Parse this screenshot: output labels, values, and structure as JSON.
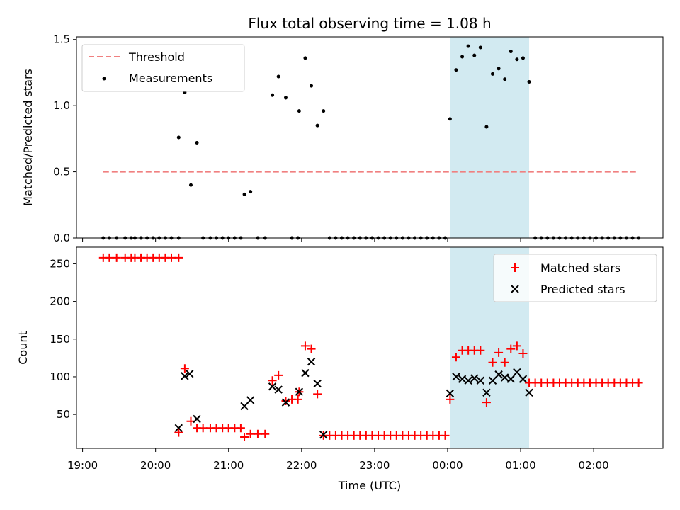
{
  "chart_data": [
    {
      "type": "scatter",
      "title": "Flux total observing time = 1.08 h",
      "xlabel": "",
      "ylabel": "Matched/Predicted stars",
      "ylim": [
        0,
        1.52
      ],
      "yticks": [
        "0.0",
        "0.5",
        "1.0",
        "1.5"
      ],
      "ytick_values": [
        0,
        0.5,
        1.0,
        1.5
      ],
      "grid": false,
      "legend_position": "top-left",
      "highlight_span": {
        "x0": "00:02",
        "x1": "01:07",
        "color": "#add8e6"
      },
      "threshold": {
        "name": "Threshold",
        "value": 0.5,
        "x0": "19:17",
        "x1": "02:37",
        "color": "#f08080"
      },
      "series": [
        {
          "name": "Measurements",
          "color": "#000000",
          "points": [
            [
              "19:17",
              0
            ],
            [
              "19:22",
              0
            ],
            [
              "19:28",
              0
            ],
            [
              "19:35",
              0
            ],
            [
              "19:40",
              0
            ],
            [
              "19:43",
              0
            ],
            [
              "19:48",
              0
            ],
            [
              "19:53",
              0
            ],
            [
              "19:58",
              0
            ],
            [
              "20:03",
              0
            ],
            [
              "20:08",
              0
            ],
            [
              "20:13",
              0
            ],
            [
              "20:19",
              0
            ],
            [
              "20:19",
              0.76
            ],
            [
              "20:24",
              1.1
            ],
            [
              "20:29",
              0.4
            ],
            [
              "20:34",
              0.72
            ],
            [
              "20:39",
              0
            ],
            [
              "20:45",
              0
            ],
            [
              "20:50",
              0
            ],
            [
              "20:55",
              0
            ],
            [
              "21:00",
              0
            ],
            [
              "21:05",
              0
            ],
            [
              "21:10",
              0
            ],
            [
              "21:13",
              0.33
            ],
            [
              "21:18",
              0.35
            ],
            [
              "21:24",
              0
            ],
            [
              "21:30",
              0
            ],
            [
              "21:36",
              1.08
            ],
            [
              "21:41",
              1.22
            ],
            [
              "21:47",
              1.06
            ],
            [
              "21:52",
              0
            ],
            [
              "21:57",
              0
            ],
            [
              "21:58",
              0.96
            ],
            [
              "22:03",
              1.36
            ],
            [
              "22:08",
              1.15
            ],
            [
              "22:13",
              0.85
            ],
            [
              "22:18",
              0.96
            ],
            [
              "22:23",
              0
            ],
            [
              "22:28",
              0
            ],
            [
              "22:33",
              0
            ],
            [
              "22:38",
              0
            ],
            [
              "22:43",
              0
            ],
            [
              "22:48",
              0
            ],
            [
              "22:53",
              0
            ],
            [
              "22:58",
              0
            ],
            [
              "23:03",
              0
            ],
            [
              "23:08",
              0
            ],
            [
              "23:13",
              0
            ],
            [
              "23:18",
              0
            ],
            [
              "23:23",
              0
            ],
            [
              "23:28",
              0
            ],
            [
              "23:33",
              0
            ],
            [
              "23:38",
              0
            ],
            [
              "23:43",
              0
            ],
            [
              "23:48",
              0
            ],
            [
              "23:53",
              0
            ],
            [
              "23:58",
              0
            ],
            [
              "00:02",
              0.9
            ],
            [
              "00:07",
              1.27
            ],
            [
              "00:12",
              1.37
            ],
            [
              "00:17",
              1.45
            ],
            [
              "00:22",
              1.38
            ],
            [
              "00:27",
              1.44
            ],
            [
              "00:32",
              0.84
            ],
            [
              "00:37",
              1.24
            ],
            [
              "00:42",
              1.28
            ],
            [
              "00:47",
              1.2
            ],
            [
              "00:52",
              1.41
            ],
            [
              "00:57",
              1.35
            ],
            [
              "01:02",
              1.36
            ],
            [
              "01:07",
              1.18
            ],
            [
              "01:12",
              0
            ],
            [
              "01:17",
              0
            ],
            [
              "01:22",
              0
            ],
            [
              "01:27",
              0
            ],
            [
              "01:32",
              0
            ],
            [
              "01:37",
              0
            ],
            [
              "01:42",
              0
            ],
            [
              "01:47",
              0
            ],
            [
              "01:52",
              0
            ],
            [
              "01:57",
              0
            ],
            [
              "02:02",
              0
            ],
            [
              "02:07",
              0
            ],
            [
              "02:12",
              0
            ],
            [
              "02:17",
              0
            ],
            [
              "02:22",
              0
            ],
            [
              "02:27",
              0
            ],
            [
              "02:32",
              0
            ],
            [
              "02:37",
              0
            ]
          ]
        }
      ]
    },
    {
      "type": "scatter",
      "title": "",
      "xlabel": "Time (UTC)",
      "ylabel": "Count",
      "ylim": [
        5,
        272
      ],
      "yticks": [
        "50",
        "100",
        "150",
        "200",
        "250"
      ],
      "ytick_values": [
        50,
        100,
        150,
        200,
        250
      ],
      "xticks": [
        "19:00",
        "20:00",
        "21:00",
        "22:00",
        "23:00",
        "00:00",
        "01:00",
        "02:00"
      ],
      "grid": false,
      "legend_position": "top-right",
      "highlight_span": {
        "x0": "00:02",
        "x1": "01:07",
        "color": "#add8e6"
      },
      "series": [
        {
          "name": "Matched stars",
          "color": "#ff0000",
          "marker": "plus",
          "points": [
            [
              "19:17",
              258
            ],
            [
              "19:22",
              258
            ],
            [
              "19:28",
              258
            ],
            [
              "19:35",
              258
            ],
            [
              "19:40",
              258
            ],
            [
              "19:43",
              258
            ],
            [
              "19:48",
              258
            ],
            [
              "19:53",
              258
            ],
            [
              "19:58",
              258
            ],
            [
              "20:03",
              258
            ],
            [
              "20:08",
              258
            ],
            [
              "20:13",
              258
            ],
            [
              "20:19",
              258
            ],
            [
              "20:19",
              26
            ],
            [
              "20:24",
              111
            ],
            [
              "20:29",
              41
            ],
            [
              "20:34",
              32
            ],
            [
              "20:39",
              32
            ],
            [
              "20:45",
              32
            ],
            [
              "20:50",
              32
            ],
            [
              "20:55",
              32
            ],
            [
              "21:00",
              32
            ],
            [
              "21:05",
              32
            ],
            [
              "21:10",
              32
            ],
            [
              "21:13",
              20
            ],
            [
              "21:18",
              24
            ],
            [
              "21:24",
              24
            ],
            [
              "21:30",
              24
            ],
            [
              "21:36",
              95
            ],
            [
              "21:41",
              102
            ],
            [
              "21:47",
              68
            ],
            [
              "21:52",
              70
            ],
            [
              "21:57",
              70
            ],
            [
              "21:58",
              80
            ],
            [
              "22:03",
              141
            ],
            [
              "22:08",
              137
            ],
            [
              "22:13",
              77
            ],
            [
              "22:18",
              22
            ],
            [
              "22:23",
              22
            ],
            [
              "22:28",
              22
            ],
            [
              "22:33",
              22
            ],
            [
              "22:38",
              22
            ],
            [
              "22:43",
              22
            ],
            [
              "22:48",
              22
            ],
            [
              "22:53",
              22
            ],
            [
              "22:58",
              22
            ],
            [
              "23:03",
              22
            ],
            [
              "23:08",
              22
            ],
            [
              "23:13",
              22
            ],
            [
              "23:18",
              22
            ],
            [
              "23:23",
              22
            ],
            [
              "23:28",
              22
            ],
            [
              "23:33",
              22
            ],
            [
              "23:38",
              22
            ],
            [
              "23:43",
              22
            ],
            [
              "23:48",
              22
            ],
            [
              "23:53",
              22
            ],
            [
              "23:58",
              22
            ],
            [
              "00:02",
              70
            ],
            [
              "00:07",
              126
            ],
            [
              "00:12",
              135
            ],
            [
              "00:17",
              135
            ],
            [
              "00:22",
              135
            ],
            [
              "00:27",
              135
            ],
            [
              "00:32",
              66
            ],
            [
              "00:37",
              119
            ],
            [
              "00:42",
              132
            ],
            [
              "00:47",
              119
            ],
            [
              "00:52",
              137
            ],
            [
              "00:57",
              141
            ],
            [
              "01:02",
              131
            ],
            [
              "01:07",
              92
            ],
            [
              "01:12",
              92
            ],
            [
              "01:17",
              92
            ],
            [
              "01:22",
              92
            ],
            [
              "01:27",
              92
            ],
            [
              "01:32",
              92
            ],
            [
              "01:37",
              92
            ],
            [
              "01:42",
              92
            ],
            [
              "01:47",
              92
            ],
            [
              "01:52",
              92
            ],
            [
              "01:57",
              92
            ],
            [
              "02:02",
              92
            ],
            [
              "02:07",
              92
            ],
            [
              "02:12",
              92
            ],
            [
              "02:17",
              92
            ],
            [
              "02:22",
              92
            ],
            [
              "02:27",
              92
            ],
            [
              "02:32",
              92
            ],
            [
              "02:37",
              92
            ]
          ]
        },
        {
          "name": "Predicted stars",
          "color": "#000000",
          "marker": "x",
          "points": [
            [
              "20:19",
              32
            ],
            [
              "20:24",
              101
            ],
            [
              "20:28",
              104
            ],
            [
              "20:34",
              44
            ],
            [
              "21:13",
              61
            ],
            [
              "21:18",
              69
            ],
            [
              "21:36",
              87
            ],
            [
              "21:41",
              83
            ],
            [
              "21:47",
              66
            ],
            [
              "21:58",
              80
            ],
            [
              "22:03",
              105
            ],
            [
              "22:08",
              120
            ],
            [
              "22:13",
              91
            ],
            [
              "22:18",
              23
            ],
            [
              "00:02",
              78
            ],
            [
              "00:07",
              100
            ],
            [
              "00:12",
              97
            ],
            [
              "00:17",
              95
            ],
            [
              "00:22",
              98
            ],
            [
              "00:27",
              95
            ],
            [
              "00:32",
              79
            ],
            [
              "00:37",
              95
            ],
            [
              "00:42",
              103
            ],
            [
              "00:47",
              99
            ],
            [
              "00:52",
              97
            ],
            [
              "00:57",
              106
            ],
            [
              "01:02",
              97
            ],
            [
              "01:07",
              79
            ]
          ]
        }
      ]
    }
  ]
}
